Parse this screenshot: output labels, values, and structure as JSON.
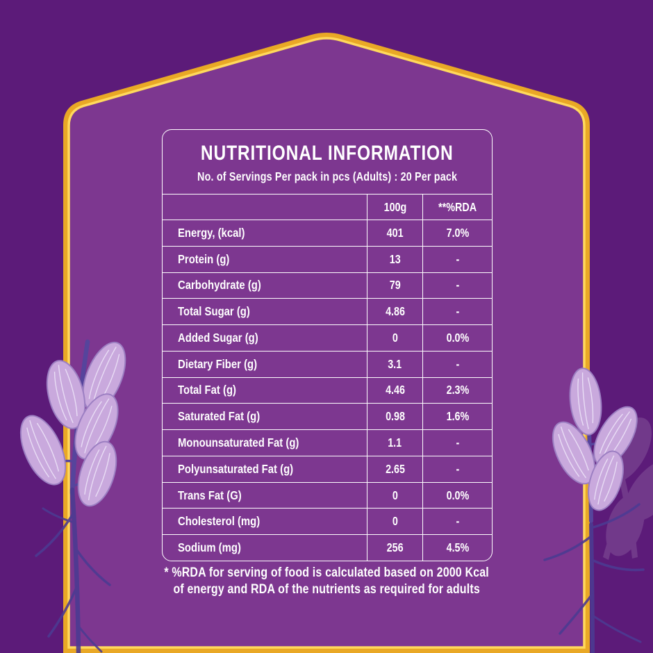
{
  "header": {
    "title": "NUTRITIONAL INFORMATION",
    "subtitle": "No. of Servings Per pack in pcs (Adults) : 20 Per pack"
  },
  "table": {
    "columns": [
      "100g",
      "**%RDA"
    ],
    "rows": [
      {
        "label": "Energy, (kcal)",
        "amount": "401",
        "rda": "7.0%"
      },
      {
        "label": "Protein (g)",
        "amount": "13",
        "rda": "-"
      },
      {
        "label": "Carbohydrate (g)",
        "amount": "79",
        "rda": "-"
      },
      {
        "label": "Total Sugar (g)",
        "amount": "4.86",
        "rda": "-"
      },
      {
        "label": "Added Sugar (g)",
        "amount": "0",
        "rda": "0.0%"
      },
      {
        "label": "Dietary Fiber (g)",
        "amount": "3.1",
        "rda": "-"
      },
      {
        "label": "Total Fat (g)",
        "amount": "4.46",
        "rda": "2.3%"
      },
      {
        "label": "Saturated Fat (g)",
        "amount": "0.98",
        "rda": "1.6%"
      },
      {
        "label": "Monounsaturated Fat (g)",
        "amount": "1.1",
        "rda": "-"
      },
      {
        "label": "Polyunsaturated Fat (g)",
        "amount": "2.65",
        "rda": "-"
      },
      {
        "label": "Trans Fat (G)",
        "amount": "0",
        "rda": "0.0%"
      },
      {
        "label": "Cholesterol (mg)",
        "amount": "0",
        "rda": "-"
      },
      {
        "label": "Sodium (mg)",
        "amount": "256",
        "rda": "4.5%"
      }
    ]
  },
  "footnote": {
    "line1": "* %RDA  for serving of food is calculated based on 2000 Kcal",
    "line2": "of energy and RDA of the nutrients as required for adults"
  },
  "colors": {
    "outer_background": "#5c1b79",
    "inner_background": "#7d3790",
    "frame_gold_dark": "#e9a826",
    "frame_gold_light": "#ffd95c",
    "text": "#ffffff",
    "leaf_fill": "#c9a9dd",
    "stem": "#56449c",
    "branch": "#4c3b92"
  }
}
